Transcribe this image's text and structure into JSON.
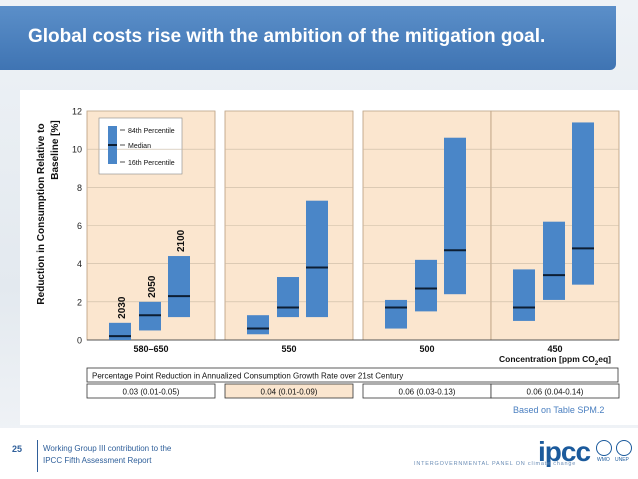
{
  "slide": {
    "title": "Global costs rise with the ambition of the mitigation goal.",
    "source_note": "Based on Table SPM.2",
    "page_number": "25",
    "footer_line1": "Working Group III contribution to the",
    "footer_line2": "IPCC Fifth Assessment Report",
    "logo_text": "ipcc",
    "logo_tagline": "INTERGOVERNMENTAL PANEL ON climate change",
    "wmo_label": "WMO",
    "unep_label": "UNEP"
  },
  "chart_data": {
    "type": "box",
    "ylabel_line1": "Reduction in Consumption Relative to",
    "ylabel_line2": "Baseline [%]",
    "ylim": [
      0,
      12
    ],
    "yticks": [
      "0",
      "2",
      "4",
      "6",
      "8",
      "10",
      "12"
    ],
    "xlabel_prefix": "Concentration [ppm CO",
    "xlabel_sub": "2",
    "xlabel_suffix": "eq]",
    "legend": {
      "p84": "84th Percentile",
      "median": "Median",
      "p16": "16th Percentile"
    },
    "year_labels": [
      "2030",
      "2050",
      "2100"
    ],
    "groups": [
      {
        "name": "580–650",
        "boxes": [
          {
            "year": "2030",
            "p16": 0.0,
            "median": 0.2,
            "p84": 0.9
          },
          {
            "year": "2050",
            "p16": 0.5,
            "median": 1.3,
            "p84": 2.0
          },
          {
            "year": "2100",
            "p16": 1.2,
            "median": 2.3,
            "p84": 4.4
          }
        ],
        "growth_reduction": "0.03 (0.01-0.05)"
      },
      {
        "name": "550",
        "boxes": [
          {
            "year": "2030",
            "p16": 0.3,
            "median": 0.6,
            "p84": 1.3
          },
          {
            "year": "2050",
            "p16": 1.2,
            "median": 1.7,
            "p84": 3.3
          },
          {
            "year": "2100",
            "p16": 1.2,
            "median": 3.8,
            "p84": 7.3
          }
        ],
        "growth_reduction": "0.04 (0.01-0.09)"
      },
      {
        "name": "500",
        "boxes": [
          {
            "year": "2030",
            "p16": 0.6,
            "median": 1.7,
            "p84": 2.1
          },
          {
            "year": "2050",
            "p16": 1.5,
            "median": 2.7,
            "p84": 4.2
          },
          {
            "year": "2100",
            "p16": 2.4,
            "median": 4.7,
            "p84": 10.6
          }
        ],
        "growth_reduction": "0.06 (0.03-0.13)"
      },
      {
        "name": "450",
        "boxes": [
          {
            "year": "2030",
            "p16": 1.0,
            "median": 1.7,
            "p84": 3.7
          },
          {
            "year": "2050",
            "p16": 2.1,
            "median": 3.4,
            "p84": 6.2
          },
          {
            "year": "2100",
            "p16": 2.9,
            "median": 4.8,
            "p84": 11.4
          }
        ],
        "growth_reduction": "0.06 (0.04-0.14)"
      }
    ],
    "growth_row_title": "Percentage Point Reduction in Annualized Consumption Growth Rate over 21st Century",
    "colors": {
      "box": "#4a86c8",
      "median": "#0d1e33",
      "panel": "#fbe6cf",
      "panel_border": "#b79a7a",
      "grid": "#c9b9a3"
    }
  }
}
